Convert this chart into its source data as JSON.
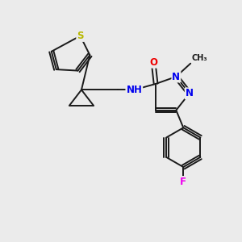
{
  "bg_color": "#ebebeb",
  "bond_color": "#1a1a1a",
  "bond_width": 1.4,
  "atom_colors": {
    "S": "#b8b800",
    "N": "#0000ee",
    "O": "#ee0000",
    "F": "#ee00ee",
    "H": "#007070",
    "C": "#1a1a1a"
  },
  "font_size_atom": 8.5
}
